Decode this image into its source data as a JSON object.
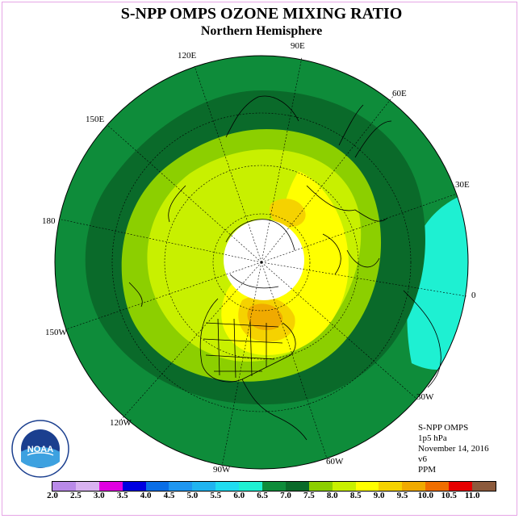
{
  "title": "S-NPP OMPS OZONE MIXING RATIO",
  "subtitle": "Northern Hemisphere",
  "lon_labels": [
    {
      "text": "90E"
    },
    {
      "text": "120E"
    },
    {
      "text": "60E"
    },
    {
      "text": "150E"
    },
    {
      "text": "30E"
    },
    {
      "text": "180"
    },
    {
      "text": "0"
    },
    {
      "text": "150W"
    },
    {
      "text": "30W"
    },
    {
      "text": "120W"
    },
    {
      "text": "60W"
    },
    {
      "text": "90W"
    }
  ],
  "info": {
    "instrument": "S-NPP OMPS",
    "level": "1p5 hPa",
    "date": "November 14, 2016",
    "version": "v6",
    "units": "PPM"
  },
  "logo": {
    "text": "NOAA",
    "icon": "noaa-logo"
  },
  "colorbar": {
    "labels": [
      "2.0",
      "2.5",
      "3.0",
      "3.5",
      "4.0",
      "4.5",
      "5.0",
      "5.5",
      "6.0",
      "6.5",
      "7.0",
      "7.5",
      "8.0",
      "8.5",
      "9.0",
      "9.5",
      "10.0",
      "10.5",
      "11.0"
    ],
    "colors": [
      "#b98ae8",
      "#d8b2f0",
      "#e000e0",
      "#0000e0",
      "#0a6ee6",
      "#1e96f0",
      "#20b4f0",
      "#20dcf0",
      "#1ef0d2",
      "#0e8c3a",
      "#0a6a2a",
      "#8ccf00",
      "#c8f000",
      "#ffff00",
      "#f5d200",
      "#f0aa00",
      "#f06e00",
      "#e60000",
      "#8c5a3c"
    ]
  },
  "chart_data": {
    "type": "heatmap",
    "title": "S-NPP OMPS OZONE MIXING RATIO",
    "subtitle": "Northern Hemisphere",
    "units": "PPM",
    "level": "1p5 hPa",
    "date": "November 14, 2016",
    "projection": "north polar stereographic",
    "scale_min": 2.0,
    "scale_max": 11.0,
    "scale_step": 0.5,
    "regions": [
      {
        "area": "outer ring (tropics / subtropics)",
        "value_range": [
          6.0,
          6.5
        ]
      },
      {
        "area": "mid-latitude band",
        "value_range": [
          6.5,
          7.0
        ]
      },
      {
        "area": "high-latitude ring",
        "value_range": [
          7.5,
          8.0
        ]
      },
      {
        "area": "North America / North Atlantic maximum",
        "value_range": [
          9.0,
          9.5
        ]
      },
      {
        "area": "eastern Atlantic near 0-30E, low latitudes",
        "value_range": [
          5.5,
          6.0
        ]
      },
      {
        "area": "pole (no data)",
        "value_range": null
      }
    ]
  }
}
